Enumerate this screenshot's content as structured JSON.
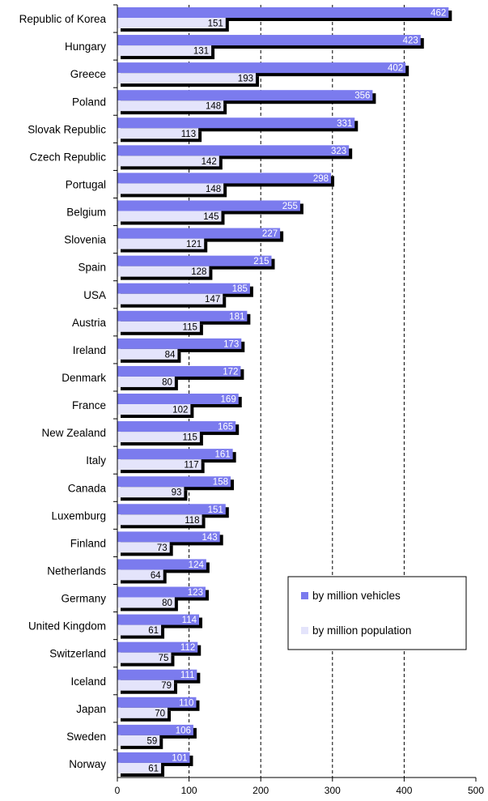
{
  "chart_data": {
    "type": "bar",
    "orientation": "horizontal",
    "categories": [
      "Republic of Korea",
      "Hungary",
      "Greece",
      "Poland",
      "Slovak Republic",
      "Czech Republic",
      "Portugal",
      "Belgium",
      "Slovenia",
      "Spain",
      "USA",
      "Austria",
      "Ireland",
      "Denmark",
      "France",
      "New Zealand",
      "Italy",
      "Canada",
      "Luxemburg",
      "Finland",
      "Netherlands",
      "Germany",
      "United Kingdom",
      "Switzerland",
      "Iceland",
      "Japan",
      "Sweden",
      "Norway"
    ],
    "series": [
      {
        "name": "by million vehicles",
        "color": "#7b7bee",
        "values": [
          462,
          423,
          402,
          356,
          331,
          323,
          298,
          255,
          227,
          215,
          185,
          181,
          173,
          172,
          169,
          165,
          161,
          158,
          151,
          143,
          124,
          123,
          114,
          112,
          111,
          110,
          106,
          101
        ]
      },
      {
        "name": "by million population",
        "color": "#e4e4fb",
        "values": [
          151,
          131,
          193,
          148,
          113,
          142,
          148,
          145,
          121,
          128,
          147,
          115,
          84,
          80,
          102,
          115,
          117,
          93,
          118,
          73,
          64,
          80,
          61,
          75,
          79,
          70,
          59,
          61
        ]
      }
    ],
    "xlim": [
      0,
      500
    ],
    "xticks": [
      0,
      100,
      200,
      300,
      400,
      500
    ],
    "gridlines": "dashed vertical",
    "legend_position": "lower-right",
    "title": "",
    "xlabel": "",
    "ylabel": ""
  }
}
